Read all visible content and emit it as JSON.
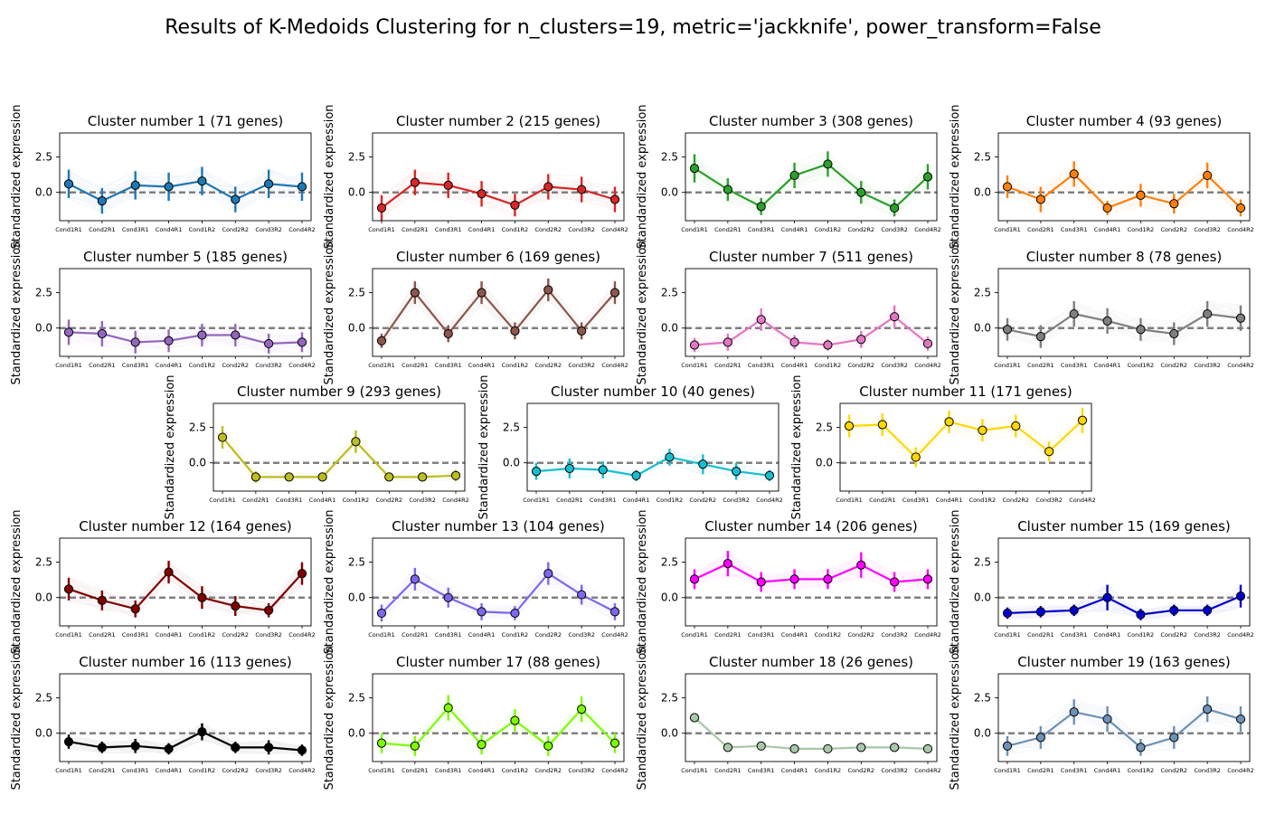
{
  "figure": {
    "title": "Results of K-Medoids Clustering for n_clusters=19, metric='jackknife', power_transform=False"
  },
  "chart_data": {
    "type": "line",
    "ylabel": "Standardized expression",
    "ylim": [
      -2.0,
      4.2
    ],
    "yticks": [
      0.0,
      2.5
    ],
    "ytick_labels": [
      "0.0",
      "2.5"
    ],
    "reference_line": 0.0,
    "categories": [
      "Cond1R1",
      "Cond2R1",
      "Cond3R1",
      "Cond4R1",
      "Cond1R2",
      "Cond2R2",
      "Cond3R2",
      "Cond4R2"
    ],
    "panels": [
      {
        "title": "Cluster number 1 (71 genes)",
        "color": "#1f77b4",
        "values": [
          0.6,
          -0.6,
          0.5,
          0.4,
          0.8,
          -0.5,
          0.6,
          0.4
        ],
        "err": [
          1.0,
          0.9,
          1.0,
          1.0,
          1.0,
          0.9,
          1.0,
          1.0
        ]
      },
      {
        "title": "Cluster number 2 (215 genes)",
        "color": "#d62728",
        "values": [
          -1.1,
          0.7,
          0.5,
          -0.1,
          -0.9,
          0.4,
          0.2,
          -0.5
        ],
        "err": [
          0.9,
          0.9,
          0.9,
          0.9,
          0.8,
          0.9,
          0.9,
          0.9
        ]
      },
      {
        "title": "Cluster number 3 (308 genes)",
        "color": "#2ca02c",
        "values": [
          1.7,
          0.2,
          -1.0,
          1.2,
          2.0,
          0.0,
          -1.1,
          1.1
        ],
        "err": [
          1.0,
          0.8,
          0.6,
          0.9,
          0.9,
          0.8,
          0.6,
          0.9
        ]
      },
      {
        "title": "Cluster number 4 (93 genes)",
        "color": "#ff7f0e",
        "values": [
          0.4,
          -0.5,
          1.3,
          -1.1,
          -0.2,
          -0.8,
          1.2,
          -1.1
        ],
        "err": [
          0.8,
          0.9,
          0.9,
          0.5,
          0.8,
          0.7,
          0.9,
          0.6
        ]
      },
      {
        "title": "Cluster number 5 (185 genes)",
        "color": "#9467bd",
        "values": [
          -0.3,
          -0.4,
          -1.0,
          -0.9,
          -0.5,
          -0.5,
          -1.1,
          -1.0
        ],
        "err": [
          0.9,
          0.9,
          0.8,
          0.8,
          0.8,
          0.8,
          0.7,
          0.7
        ]
      },
      {
        "title": "Cluster number 6 (169 genes)",
        "color": "#8c564b",
        "values": [
          -0.9,
          2.5,
          -0.4,
          2.5,
          -0.2,
          2.7,
          -0.2,
          2.5
        ],
        "err": [
          0.5,
          0.8,
          0.6,
          0.8,
          0.6,
          0.8,
          0.6,
          0.8
        ]
      },
      {
        "title": "Cluster number 7 (511 genes)",
        "color": "#e377c2",
        "values": [
          -1.2,
          -1.0,
          0.6,
          -1.0,
          -1.2,
          -0.8,
          0.8,
          -1.1
        ],
        "err": [
          0.5,
          0.6,
          0.8,
          0.5,
          0.4,
          0.6,
          0.8,
          0.5
        ]
      },
      {
        "title": "Cluster number 8 (78 genes)",
        "color": "#7f7f7f",
        "values": [
          -0.1,
          -0.6,
          1.0,
          0.5,
          -0.1,
          -0.4,
          1.0,
          0.7
        ],
        "err": [
          0.8,
          0.8,
          0.9,
          0.9,
          0.8,
          0.8,
          0.9,
          0.9
        ]
      },
      {
        "title": "Cluster number 9 (293 genes)",
        "color": "#bcbd22",
        "values": [
          1.8,
          -1.0,
          -1.0,
          -1.0,
          1.5,
          -1.0,
          -1.0,
          -0.9
        ],
        "err": [
          0.8,
          0.4,
          0.3,
          0.3,
          0.8,
          0.3,
          0.3,
          0.4
        ]
      },
      {
        "title": "Cluster number 10 (40 genes)",
        "color": "#17becf",
        "values": [
          -0.6,
          -0.4,
          -0.5,
          -0.9,
          0.4,
          -0.1,
          -0.6,
          -0.9
        ],
        "err": [
          0.6,
          0.7,
          0.6,
          0.4,
          0.6,
          0.7,
          0.6,
          0.4
        ]
      },
      {
        "title": "Cluster number 11 (171 genes)",
        "color": "#ffd700",
        "values": [
          2.6,
          2.7,
          0.4,
          2.9,
          2.3,
          2.6,
          0.8,
          3.0
        ],
        "err": [
          0.8,
          0.8,
          0.7,
          0.8,
          0.8,
          0.8,
          0.7,
          0.9
        ]
      },
      {
        "title": "Cluster number 12 (164 genes)",
        "color": "#800000",
        "values": [
          0.6,
          -0.2,
          -0.8,
          1.8,
          0.0,
          -0.6,
          -0.9,
          1.7
        ],
        "err": [
          0.8,
          0.7,
          0.6,
          0.8,
          0.8,
          0.7,
          0.5,
          0.8
        ]
      },
      {
        "title": "Cluster number 13 (104 genes)",
        "color": "#7b68ee",
        "values": [
          -1.1,
          1.3,
          0.0,
          -1.0,
          -1.1,
          1.7,
          0.2,
          -1.0
        ],
        "err": [
          0.6,
          0.8,
          0.7,
          0.6,
          0.5,
          0.8,
          0.7,
          0.6
        ]
      },
      {
        "title": "Cluster number 14 (206 genes)",
        "color": "#ff00ff",
        "values": [
          1.3,
          2.4,
          1.1,
          1.3,
          1.3,
          2.3,
          1.1,
          1.3
        ],
        "err": [
          0.7,
          0.9,
          0.7,
          0.7,
          0.7,
          0.9,
          0.7,
          0.7
        ]
      },
      {
        "title": "Cluster number 15 (169 genes)",
        "color": "#0000cd",
        "values": [
          -1.1,
          -1.0,
          -0.9,
          0.0,
          -1.2,
          -0.9,
          -0.9,
          0.1
        ],
        "err": [
          0.4,
          0.4,
          0.4,
          0.9,
          0.4,
          0.4,
          0.4,
          0.8
        ]
      },
      {
        "title": "Cluster number 16 (113 genes)",
        "color": "#000000",
        "values": [
          -0.6,
          -1.0,
          -0.9,
          -1.1,
          0.1,
          -1.0,
          -1.0,
          -1.2
        ],
        "err": [
          0.5,
          0.4,
          0.5,
          0.4,
          0.6,
          0.4,
          0.5,
          0.4
        ]
      },
      {
        "title": "Cluster number 17 (88 genes)",
        "color": "#7cfc00",
        "values": [
          -0.7,
          -0.9,
          1.8,
          -0.8,
          0.9,
          -0.9,
          1.7,
          -0.7
        ],
        "err": [
          0.7,
          0.7,
          0.9,
          0.7,
          0.8,
          0.7,
          0.9,
          0.7
        ]
      },
      {
        "title": "Cluster number 18 (26 genes)",
        "color": "#a9c8a8",
        "values": [
          1.1,
          -1.0,
          -0.9,
          -1.1,
          -1.1,
          -1.0,
          -1.0,
          -1.1
        ],
        "err": [
          0.2,
          0.1,
          0.1,
          0.1,
          0.1,
          0.1,
          0.1,
          0.1
        ]
      },
      {
        "title": "Cluster number 19 (163 genes)",
        "color": "#6e91b6",
        "values": [
          -0.9,
          -0.3,
          1.5,
          1.0,
          -1.0,
          -0.3,
          1.7,
          1.0
        ],
        "err": [
          0.7,
          0.8,
          0.9,
          0.9,
          0.6,
          0.8,
          0.9,
          0.9
        ]
      }
    ]
  }
}
